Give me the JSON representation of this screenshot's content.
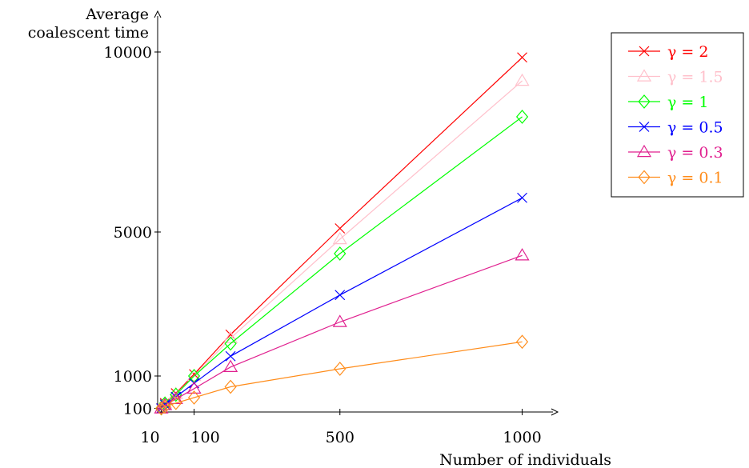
{
  "chart_data": {
    "type": "line",
    "xlabel": "Number of individuals",
    "ylabel": [
      "Average",
      "coalescent time"
    ],
    "xlim": [
      0,
      1100
    ],
    "ylim": [
      0,
      10500
    ],
    "xticks": [
      10,
      100,
      500,
      1000
    ],
    "yticks": [
      100,
      1000,
      5000,
      10000
    ],
    "x": [
      10,
      20,
      50,
      100,
      200,
      500,
      1000
    ],
    "legend_position": "top-right",
    "series": [
      {
        "name": "γ = 2",
        "color": "#ff0000",
        "marker": "x",
        "values": [
          100,
          250,
          520,
          1050,
          2150,
          5100,
          9850
        ]
      },
      {
        "name": "γ = 1.5",
        "color": "#ffc0cb",
        "marker": "triangle",
        "values": [
          100,
          240,
          500,
          1000,
          2050,
          4800,
          9200
        ]
      },
      {
        "name": "γ = 1",
        "color": "#00ff00",
        "marker": "diamond",
        "values": [
          100,
          235,
          480,
          1000,
          1900,
          4400,
          8200
        ]
      },
      {
        "name": "γ = 0.5",
        "color": "#0000ff",
        "marker": "x",
        "values": [
          100,
          210,
          420,
          800,
          1550,
          3250,
          5950
        ]
      },
      {
        "name": "γ = 0.3",
        "color": "#e0208f",
        "marker": "triangle",
        "values": [
          100,
          190,
          360,
          650,
          1250,
          2500,
          4350
        ]
      },
      {
        "name": "γ = 0.1",
        "color": "#ff8c1a",
        "marker": "diamond",
        "values": [
          100,
          150,
          250,
          400,
          700,
          1200,
          1950
        ]
      }
    ]
  }
}
